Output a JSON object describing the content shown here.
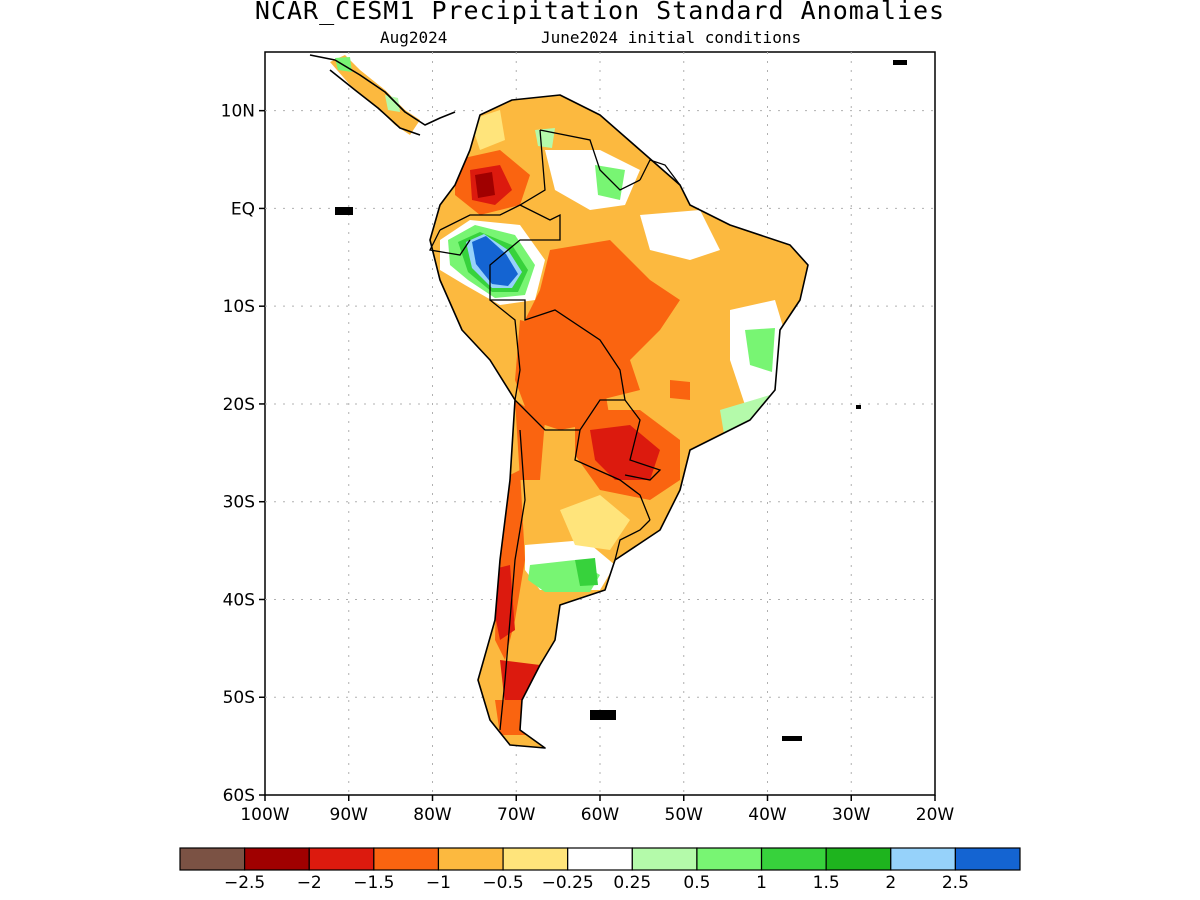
{
  "header": {
    "title": "NCAR_CESM1 Precipitation Standard Anomalies",
    "target_month": "Aug2024",
    "init_conditions": "June2024 initial conditions"
  },
  "axes": {
    "lat_labels": [
      {
        "lat": 10,
        "text": "10N"
      },
      {
        "lat": 0,
        "text": "EQ"
      },
      {
        "lat": -10,
        "text": "10S"
      },
      {
        "lat": -20,
        "text": "20S"
      },
      {
        "lat": -30,
        "text": "30S"
      },
      {
        "lat": -40,
        "text": "40S"
      },
      {
        "lat": -50,
        "text": "50S"
      },
      {
        "lat": -60,
        "text": "60S"
      }
    ],
    "lon_labels": [
      {
        "lon": -100,
        "text": "100W"
      },
      {
        "lon": -90,
        "text": "90W"
      },
      {
        "lon": -80,
        "text": "80W"
      },
      {
        "lon": -70,
        "text": "70W"
      },
      {
        "lon": -60,
        "text": "60W"
      },
      {
        "lon": -50,
        "text": "50W"
      },
      {
        "lon": -40,
        "text": "40W"
      },
      {
        "lon": -30,
        "text": "30W"
      },
      {
        "lon": -20,
        "text": "20W"
      }
    ],
    "lon_range": [
      -100,
      -20
    ],
    "lat_range": [
      -60,
      16
    ]
  },
  "colorbar": {
    "colors": [
      "#7b5244",
      "#a00000",
      "#dc1a0e",
      "#fa6410",
      "#fcb93f",
      "#ffe47b",
      "#ffffff",
      "#b4faaa",
      "#78f573",
      "#37d23c",
      "#1eb41e",
      "#96d2fa",
      "#1464d2"
    ],
    "labels": [
      "−2.5",
      "−2",
      "−1.5",
      "−1",
      "−0.5",
      "−0.25",
      "0.25",
      "0.5",
      "1",
      "1.5",
      "2",
      "2.5"
    ]
  }
}
